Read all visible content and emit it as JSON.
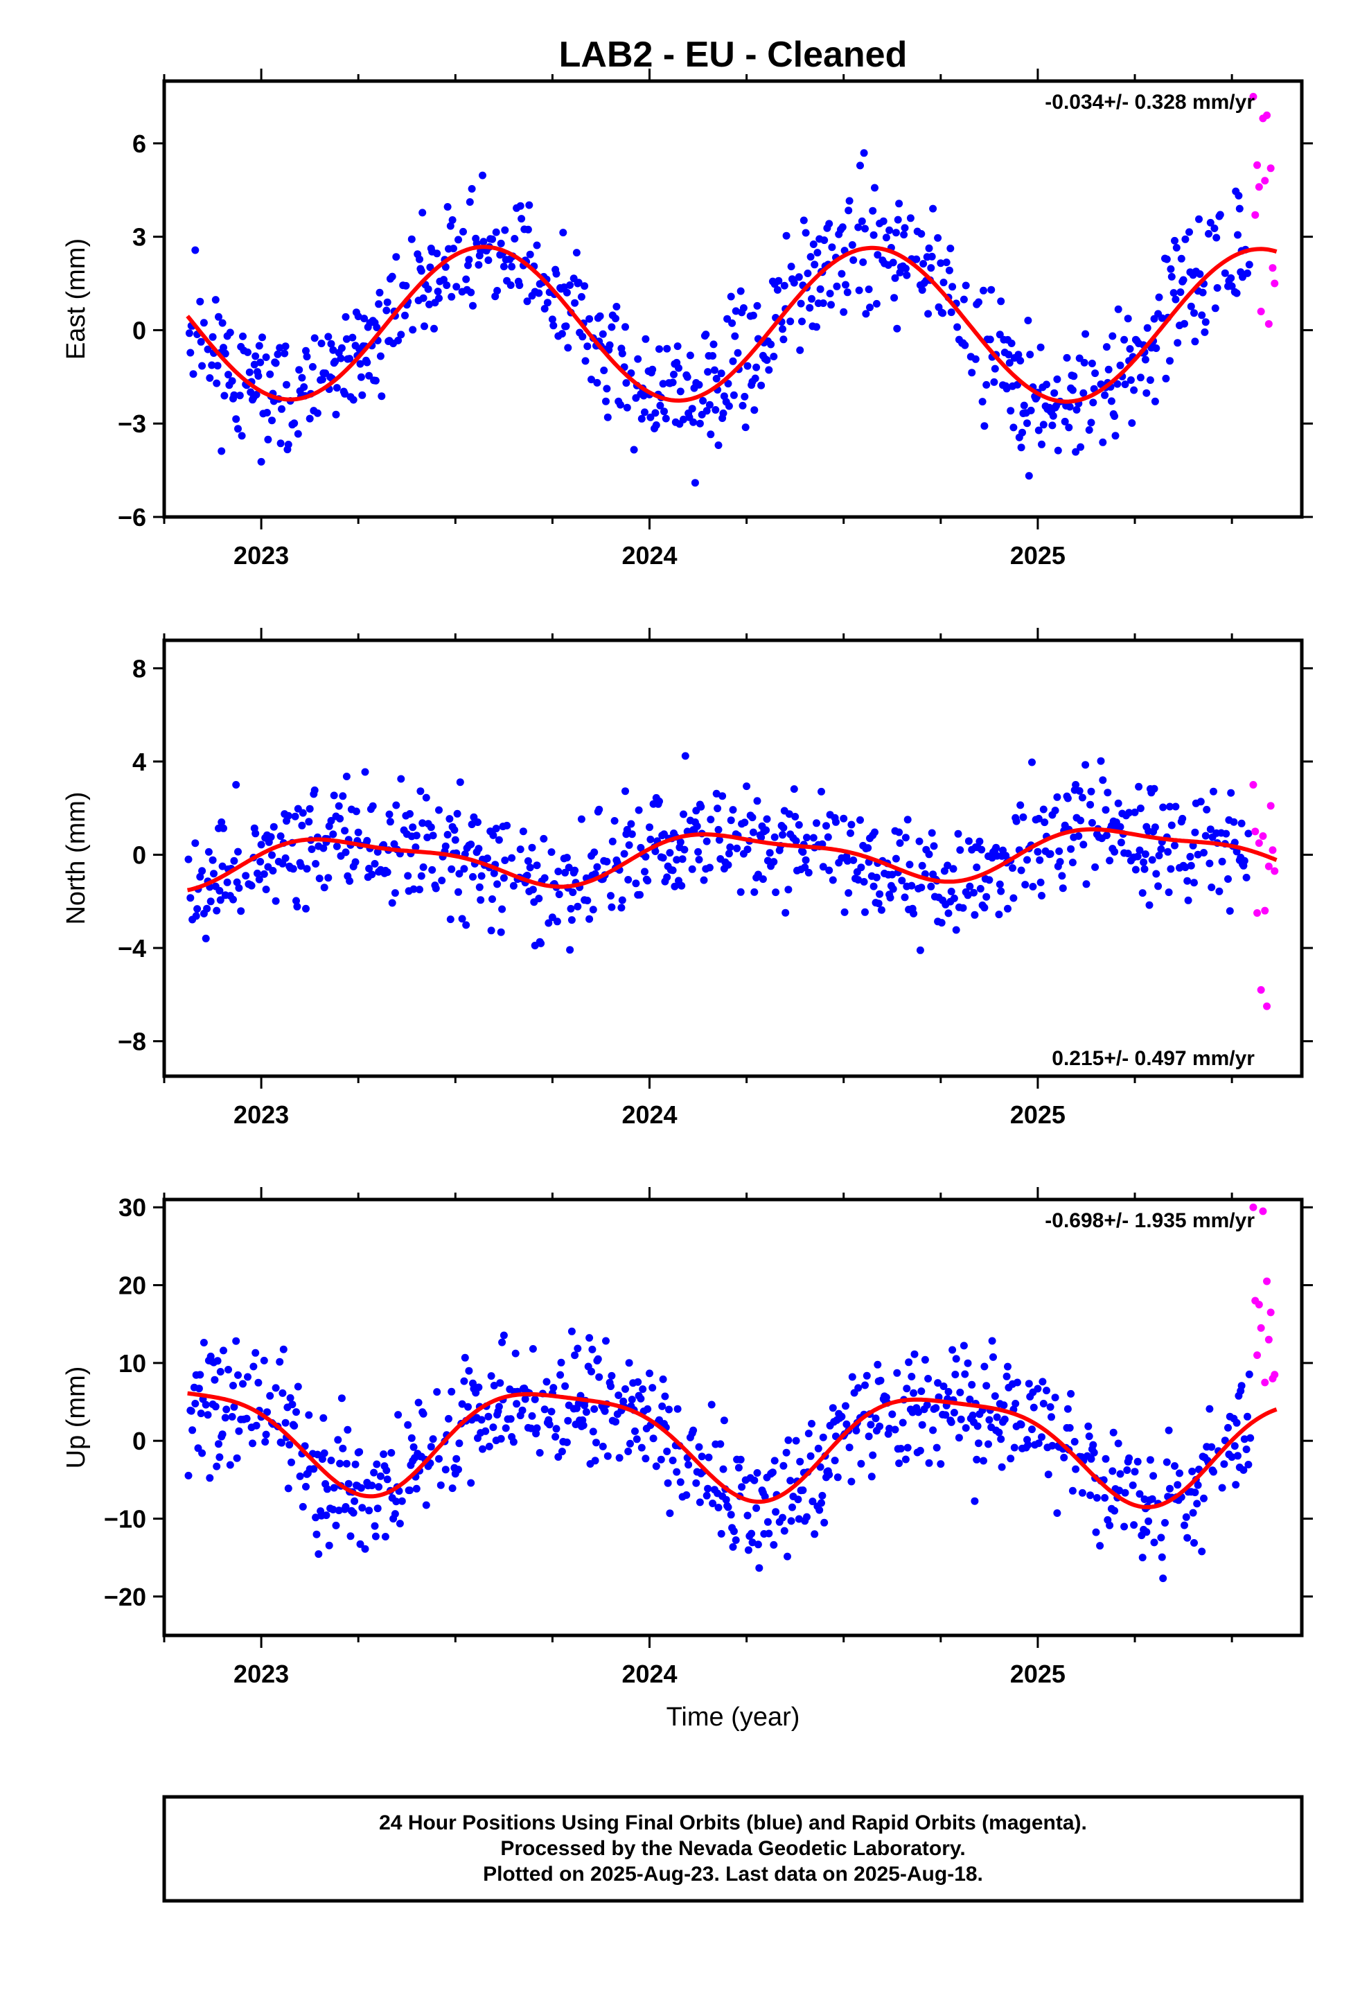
{
  "colors": {
    "final_orbits": "#0000ff",
    "rapid_orbits": "#ff00ff",
    "model_fit": "#ff0000"
  },
  "chart_data": [
    {
      "type": "scatter",
      "title": "LAB2  - EU - Cleaned",
      "ylabel": "East (mm)",
      "rate": "-0.034+/- 0.328 mm/yr",
      "rate_position": "top-right",
      "xlim": [
        2022.75,
        2025.68
      ],
      "ylim": [
        -6,
        8.0
      ],
      "xticks": [
        2023,
        2024,
        2025
      ],
      "yticks": [
        -6,
        -3,
        0,
        3,
        6
      ],
      "fit": {
        "offset": 0.2,
        "slope": -0.034,
        "a1": -2.2,
        "b1": -1.1,
        "a2": 0,
        "b2": 0,
        "ref": 2024.0
      },
      "noise": 1.0,
      "seed": 11,
      "rapid_x": [
        2025.555,
        2025.56,
        2025.565,
        2025.57,
        2025.575,
        2025.58,
        2025.585,
        2025.59,
        2025.595,
        2025.6,
        2025.605,
        2025.61
      ],
      "rapid_y": [
        7.5,
        3.7,
        5.3,
        4.6,
        0.6,
        6.8,
        4.8,
        6.9,
        0.2,
        5.2,
        2.0,
        1.5
      ],
      "grid": false
    },
    {
      "type": "scatter",
      "title": "",
      "ylabel": "North (mm)",
      "rate": "0.215+/- 0.497 mm/yr",
      "rate_position": "bottom-right",
      "xlim": [
        2022.75,
        2025.68
      ],
      "ylim": [
        -9.5,
        9.2
      ],
      "xticks": [
        2023,
        2024,
        2025
      ],
      "yticks": [
        -8,
        -4,
        0,
        4,
        8
      ],
      "fit": {
        "offset": -0.1,
        "slope": 0.215,
        "a1": 0.1,
        "b1": 0.95,
        "a2": 0.25,
        "b2": 0.2,
        "ref": 2024.0
      },
      "noise": 1.25,
      "seed": 23,
      "rapid_x": [
        2025.555,
        2025.56,
        2025.565,
        2025.57,
        2025.575,
        2025.58,
        2025.585,
        2025.59,
        2025.595,
        2025.6,
        2025.605,
        2025.61
      ],
      "rapid_y": [
        3.0,
        1.0,
        -2.5,
        0.5,
        -5.8,
        0.8,
        -2.4,
        -6.5,
        -0.5,
        2.1,
        0.2,
        -0.7
      ],
      "grid": false
    },
    {
      "type": "scatter",
      "title": "",
      "ylabel": "Up (mm)",
      "xlabel": "Time (year)",
      "rate": "-0.698+/- 1.935 mm/yr",
      "rate_position": "top-right",
      "xlim": [
        2022.75,
        2025.68
      ],
      "ylim": [
        -25,
        31
      ],
      "xticks": [
        2023,
        2024,
        2025
      ],
      "yticks": [
        -20,
        -10,
        0,
        10,
        20,
        30
      ],
      "fit": {
        "offset": 0.5,
        "slope": -0.698,
        "a1": 0.8,
        "b1": -6.5,
        "a2": 1.4,
        "b2": 0.8,
        "ref": 2024.0
      },
      "noise": 4.2,
      "seed": 37,
      "rapid_x": [
        2025.555,
        2025.56,
        2025.565,
        2025.57,
        2025.575,
        2025.58,
        2025.585,
        2025.59,
        2025.595,
        2025.6,
        2025.605,
        2025.61
      ],
      "rapid_y": [
        30.0,
        18.0,
        11.0,
        17.5,
        14.5,
        29.5,
        7.5,
        20.5,
        13.0,
        16.5,
        8.0,
        8.5
      ],
      "grid": false
    }
  ],
  "caption": {
    "line1": "24 Hour Positions Using Final Orbits (blue) and Rapid Orbits (magenta).",
    "line2": "Processed by the Nevada Geodetic Laboratory.",
    "line3": "Plotted on 2025-Aug-23. Last data on 2025-Aug-18."
  }
}
